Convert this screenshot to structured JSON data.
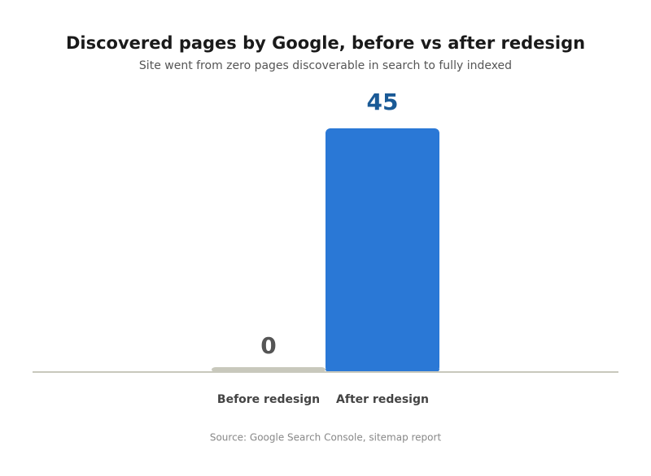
{
  "chart_data": {
    "type": "bar",
    "title": "Discovered pages by Google, before vs after redesign",
    "subtitle": "Site went from zero pages discoverable in search to fully indexed",
    "source": "Source: Google Search Console, sitemap report",
    "categories": [
      "Before redesign",
      "After redesign"
    ],
    "values": [
      0,
      45
    ],
    "colors": [
      "#c8c8bc",
      "#2a78d6"
    ],
    "label_colors": [
      "#555555",
      "#1a5a96"
    ],
    "ylim": [
      0,
      45
    ],
    "grid": false
  }
}
